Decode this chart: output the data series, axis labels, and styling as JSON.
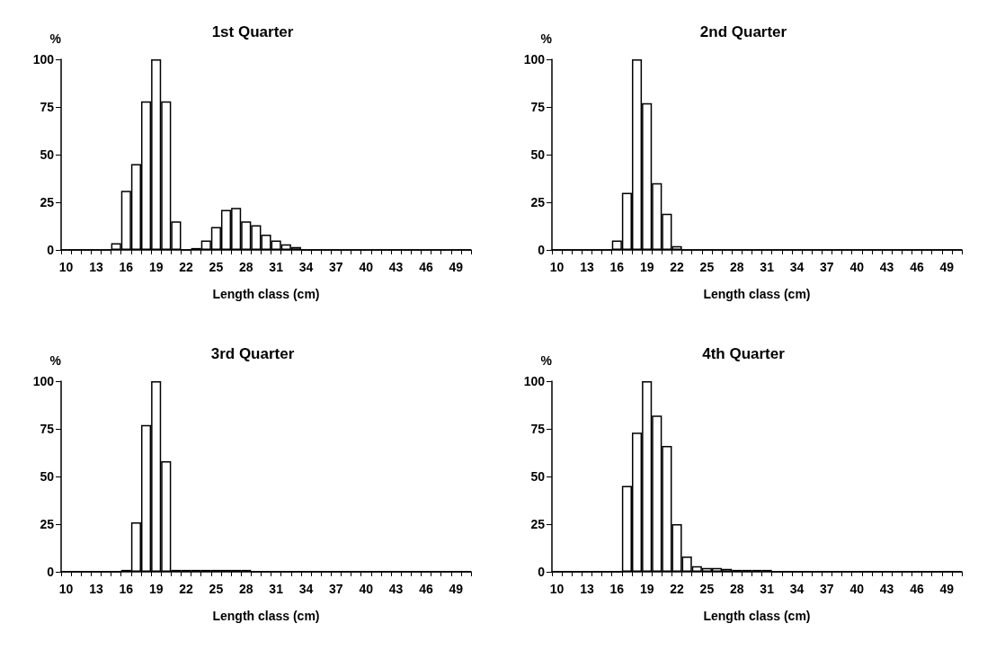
{
  "chart_data": [
    {
      "type": "bar",
      "title": "1st Quarter",
      "xlabel": "Length class (cm)",
      "ylabel": "%",
      "categories": [
        "10",
        null,
        null,
        "13",
        null,
        null,
        "16",
        null,
        null,
        "19",
        null,
        null,
        "22",
        null,
        null,
        "25",
        null,
        null,
        "28",
        null,
        null,
        "31",
        null,
        null,
        "34",
        null,
        null,
        "37",
        null,
        null,
        "40",
        null,
        null,
        "43",
        null,
        null,
        "46",
        null,
        null,
        "49",
        null
      ],
      "values": [
        0,
        0,
        0,
        0,
        0,
        3.5,
        31,
        45,
        78,
        100,
        78,
        15,
        0,
        1,
        5,
        12,
        21,
        22,
        15,
        13,
        8,
        5,
        3,
        1.5,
        0,
        0,
        0,
        0,
        0,
        0,
        0,
        0,
        0,
        0,
        0,
        0,
        0,
        0,
        0,
        0,
        0
      ],
      "color": "#ffffff",
      "ylim": [
        0,
        100
      ],
      "yticks": [
        0,
        25,
        50,
        75,
        100
      ],
      "grid": false
    },
    {
      "type": "bar",
      "title": "2nd Quarter",
      "xlabel": "Length class (cm)",
      "ylabel": "%",
      "categories": [
        "10",
        null,
        null,
        "13",
        null,
        null,
        "16",
        null,
        null,
        "19",
        null,
        null,
        "22",
        null,
        null,
        "25",
        null,
        null,
        "28",
        null,
        null,
        "31",
        null,
        null,
        "34",
        null,
        null,
        "37",
        null,
        null,
        "40",
        null,
        null,
        "43",
        null,
        null,
        "46",
        null,
        null,
        "49",
        null
      ],
      "values": [
        0,
        0,
        0,
        0,
        0,
        0,
        5,
        30,
        100,
        77,
        35,
        19,
        2,
        0,
        0,
        0,
        0,
        0,
        0,
        0,
        0,
        0,
        0,
        0,
        0,
        0,
        0,
        0,
        0,
        0,
        0,
        0,
        0,
        0,
        0,
        0,
        0,
        0,
        0,
        0,
        0
      ],
      "color": "#ffffff",
      "ylim": [
        0,
        100
      ],
      "yticks": [
        0,
        25,
        50,
        75,
        100
      ],
      "grid": false
    },
    {
      "type": "bar",
      "title": "3rd Quarter",
      "xlabel": "Length class (cm)",
      "ylabel": "%",
      "categories": [
        "10",
        null,
        null,
        "13",
        null,
        null,
        "16",
        null,
        null,
        "19",
        null,
        null,
        "22",
        null,
        null,
        "25",
        null,
        null,
        "28",
        null,
        null,
        "31",
        null,
        null,
        "34",
        null,
        null,
        "37",
        null,
        null,
        "40",
        null,
        null,
        "43",
        null,
        null,
        "46",
        null,
        null,
        "49",
        null
      ],
      "values": [
        0,
        0,
        0,
        0,
        0,
        0,
        1,
        26,
        77,
        100,
        58,
        1,
        1,
        1,
        1,
        1,
        1,
        1,
        1,
        0,
        0,
        0,
        0,
        0,
        0,
        0,
        0,
        0,
        0,
        0,
        0,
        0,
        0,
        0,
        0,
        0,
        0,
        0,
        0,
        0,
        0
      ],
      "color": "#ffffff",
      "ylim": [
        0,
        100
      ],
      "yticks": [
        0,
        25,
        50,
        75,
        100
      ],
      "grid": false
    },
    {
      "type": "bar",
      "title": "4th Quarter",
      "xlabel": "Length class (cm)",
      "ylabel": "%",
      "categories": [
        "10",
        null,
        null,
        "13",
        null,
        null,
        "16",
        null,
        null,
        "19",
        null,
        null,
        "22",
        null,
        null,
        "25",
        null,
        null,
        "28",
        null,
        null,
        "31",
        null,
        null,
        "34",
        null,
        null,
        "37",
        null,
        null,
        "40",
        null,
        null,
        "43",
        null,
        null,
        "46",
        null,
        null,
        "49",
        null
      ],
      "values": [
        0,
        0,
        0,
        0,
        0,
        0,
        0,
        45,
        73,
        100,
        82,
        66,
        25,
        8,
        3,
        2,
        2,
        1.5,
        1,
        1,
        1,
        1,
        0,
        0,
        0,
        0,
        0,
        0,
        0,
        0,
        0,
        0,
        0,
        0,
        0,
        0,
        0,
        0,
        0,
        0,
        0
      ],
      "color": "#ffffff",
      "ylim": [
        0,
        100
      ],
      "yticks": [
        0,
        25,
        50,
        75,
        100
      ],
      "grid": false
    }
  ]
}
